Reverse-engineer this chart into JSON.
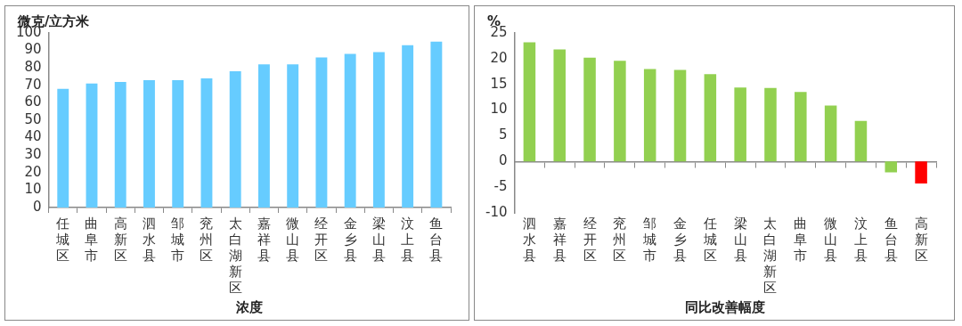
{
  "chart_data": [
    {
      "type": "bar",
      "xlabel": "浓度",
      "ylabel": "微克/立方米",
      "categories": [
        "任城区",
        "曲阜市",
        "高新区",
        "泗水县",
        "邹城市",
        "兖州区",
        "太白湖新区",
        "嘉祥县",
        "微山县",
        "经开区",
        "金乡县",
        "梁山县",
        "汶上县",
        "鱼台县"
      ],
      "values": [
        68,
        71,
        72,
        73,
        73,
        74,
        78,
        82,
        82,
        86,
        88,
        89,
        93,
        95
      ],
      "color": "#66ccff",
      "ylim": [
        0,
        100
      ],
      "yticks": [
        0,
        10,
        20,
        30,
        40,
        50,
        60,
        70,
        80,
        90,
        100
      ],
      "grid": false,
      "legend": false
    },
    {
      "type": "bar",
      "xlabel": "同比改善幅度",
      "ylabel": "%",
      "categories": [
        "泗水县",
        "嘉祥县",
        "经开区",
        "兖州区",
        "邹城市",
        "金乡县",
        "任城区",
        "梁山县",
        "太白湖新区",
        "曲阜市",
        "微山县",
        "汶上县",
        "鱼台县",
        "高新区"
      ],
      "values": [
        23.2,
        21.8,
        20.2,
        19.6,
        18.0,
        17.8,
        17.0,
        14.4,
        14.3,
        13.5,
        10.9,
        7.9,
        -2.1,
        -4.3
      ],
      "colors": [
        "#92d050",
        "#92d050",
        "#92d050",
        "#92d050",
        "#92d050",
        "#92d050",
        "#92d050",
        "#92d050",
        "#92d050",
        "#92d050",
        "#92d050",
        "#92d050",
        "#92d050",
        "#ff0000"
      ],
      "ylim": [
        -10,
        25
      ],
      "yticks": [
        -10,
        -5,
        0,
        5,
        10,
        15,
        20,
        25
      ],
      "grid": false,
      "legend": false,
      "ref_lines": [
        {
          "axis": "y",
          "value": 0,
          "color": "#888888"
        }
      ]
    }
  ]
}
